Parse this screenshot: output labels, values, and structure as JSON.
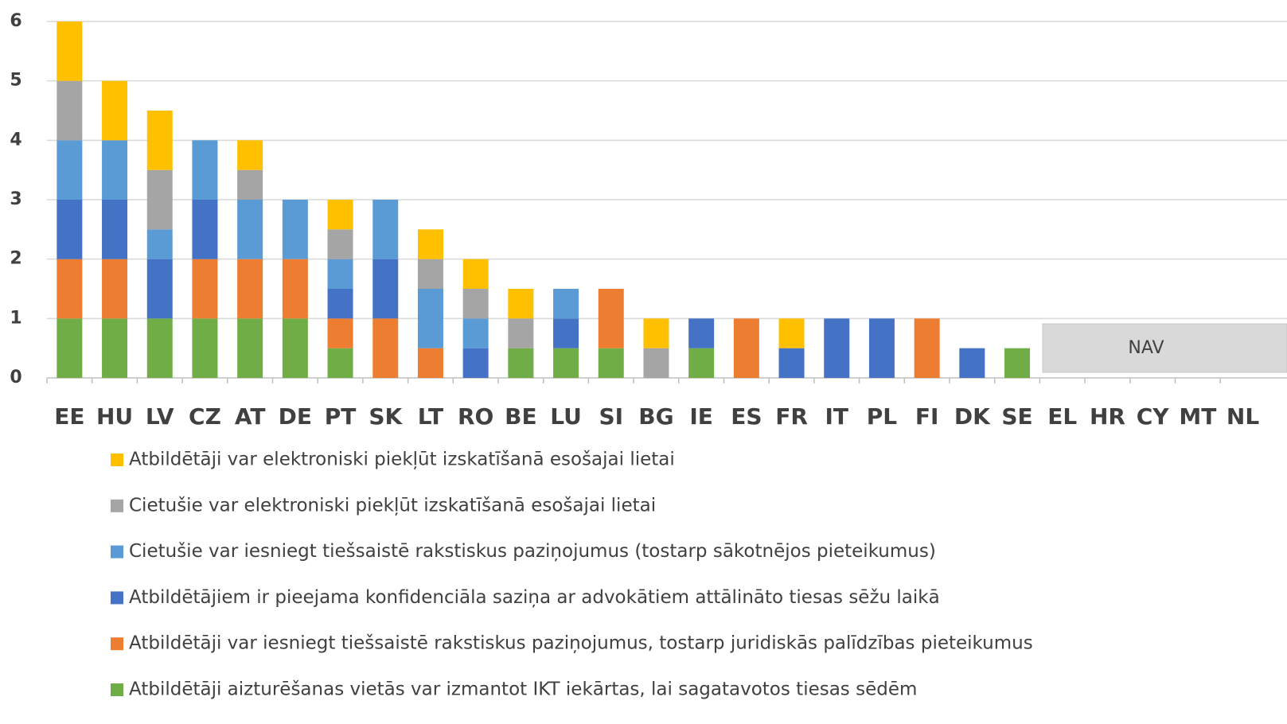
{
  "chart_data": {
    "type": "stacked_bar",
    "categories": [
      "EE",
      "HU",
      "LV",
      "CZ",
      "AT",
      "DE",
      "PT",
      "SK",
      "LT",
      "RO",
      "BE",
      "LU",
      "SI",
      "BG",
      "IE",
      "ES",
      "FR",
      "IT",
      "PL",
      "FI",
      "DK",
      "SE",
      "EL",
      "HR",
      "CY",
      "MT",
      "NL"
    ],
    "series": [
      {
        "name": "Atbildētāji var elektroniski piekļūt izskatīšanā esošajai lietai",
        "color": "#ffc000",
        "values": [
          1,
          1,
          1,
          0,
          0.5,
          0,
          0.5,
          0,
          0.5,
          0.5,
          0.5,
          0,
          0,
          0.5,
          0,
          0,
          0.5,
          0,
          0,
          0,
          0,
          0,
          null,
          null,
          null,
          null,
          null
        ]
      },
      {
        "name": "Cietušie var elektroniski piekļūt izskatīšanā esošajai lietai",
        "color": "#a5a5a5",
        "values": [
          1,
          0,
          1,
          0,
          0.5,
          0,
          0.5,
          0,
          0.5,
          0.5,
          0.5,
          0,
          0,
          0.5,
          0,
          0,
          0,
          0,
          0,
          0,
          0,
          0,
          null,
          null,
          null,
          null,
          null
        ]
      },
      {
        "name": "Cietušie var iesniegt tiešsaistē rakstiskus paziņojumus (tostarp sākotnējos pieteikumus)",
        "color": "#5b9bd5",
        "values": [
          1,
          1,
          0.5,
          1,
          1,
          1,
          0.5,
          1,
          1,
          0.5,
          0,
          0.5,
          0,
          0,
          0,
          0,
          0,
          0,
          0,
          0,
          0,
          0,
          null,
          null,
          null,
          null,
          null
        ]
      },
      {
        "name": "Atbildētājiem ir pieejama konfidenciāla saziņa ar advokātiem attālināto tiesas sēžu laikā",
        "color": "#4472c4",
        "values": [
          1,
          1,
          1,
          1,
          0,
          0,
          0.5,
          1,
          0,
          0.5,
          0,
          0.5,
          0,
          0,
          0.5,
          0,
          0.5,
          1,
          1,
          0,
          0.5,
          0,
          null,
          null,
          null,
          null,
          null
        ]
      },
      {
        "name": "Atbildētāji var iesniegt tiešsaistē rakstiskus paziņojumus, tostarp juridiskās palīdzības pieteikumus",
        "color": "#ed7d31",
        "values": [
          1,
          1,
          0,
          1,
          1,
          1,
          0.5,
          1,
          0.5,
          0,
          0,
          0,
          1,
          0,
          0,
          1,
          0,
          0,
          0,
          1,
          0,
          0,
          null,
          null,
          null,
          null,
          null
        ]
      },
      {
        "name": "Atbildētāji aizturēšanas vietās var izmantot IKT iekārtas, lai sagatavotos tiesas sēdēm",
        "color": "#70ad47",
        "values": [
          1,
          1,
          1,
          1,
          1,
          1,
          0.5,
          0,
          0,
          0,
          0.5,
          0.5,
          0.5,
          0,
          0.5,
          0,
          0,
          0,
          0,
          0,
          0,
          0.5,
          null,
          null,
          null,
          null,
          null
        ]
      }
    ],
    "annotation": "NAV",
    "ylim": [
      0,
      6
    ],
    "yticks": [
      0,
      1,
      2,
      3,
      4,
      5,
      6
    ],
    "grid": true
  }
}
